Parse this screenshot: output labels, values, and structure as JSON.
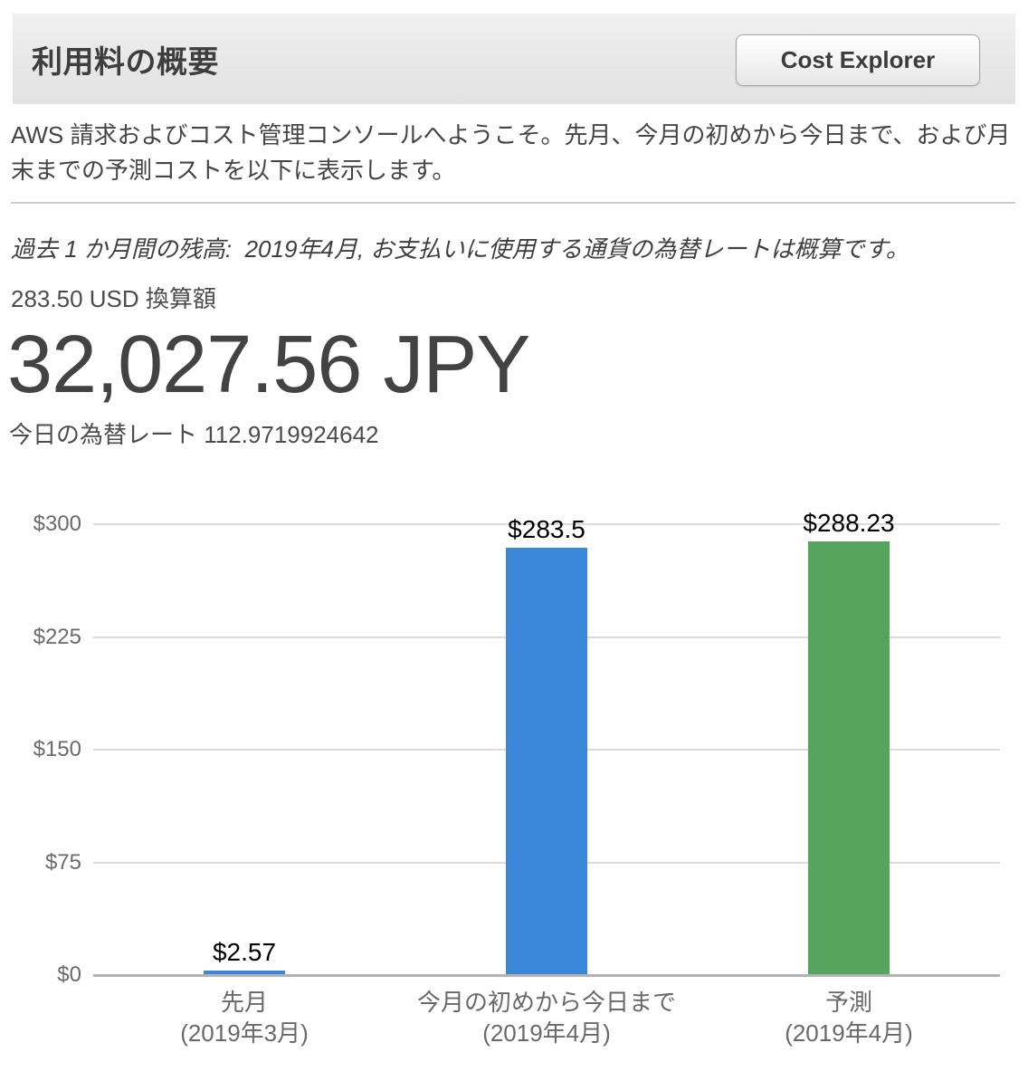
{
  "header": {
    "title": "利用料の概要",
    "cost_explorer_label": "Cost Explorer"
  },
  "intro": "AWS 請求およびコスト管理コンソールへようこそ。先月、今月の初めから今日まで、および月末までの予測コストを以下に表示します。",
  "balance_note": "過去 1 か月間の残高:  2019年4月, お支払いに使用する通貨の為替レートは概算です。",
  "converted_usd_line": "283.50 USD 換算額",
  "jpy_amount": "32,027.56 JPY",
  "exchange_rate_line": "今日の為替レート 112.9719924642",
  "chart_data": {
    "type": "bar",
    "categories": [
      [
        "先月",
        "(2019年3月)"
      ],
      [
        "今月の初めから今日まで",
        "(2019年4月)"
      ],
      [
        "予測",
        "(2019年4月)"
      ]
    ],
    "values": [
      2.57,
      283.5,
      288.23
    ],
    "bar_labels": [
      "$2.57",
      "$283.5",
      "$288.23"
    ],
    "bar_colors": [
      "#3a86d8",
      "#3a86d8",
      "#56a55e"
    ],
    "y_ticks": [
      {
        "value": 300,
        "label": "$300"
      },
      {
        "value": 225,
        "label": "$225"
      },
      {
        "value": 150,
        "label": "$150"
      },
      {
        "value": 75,
        "label": "$75"
      },
      {
        "value": 0,
        "label": "$0"
      }
    ],
    "ylim": [
      0,
      300
    ],
    "xlabel": "",
    "ylabel": "",
    "title": "",
    "legend": "none",
    "grid": "horizontal"
  },
  "colors": {
    "bar_blue": "#3a86d8",
    "bar_green": "#56a55e",
    "gridline": "#dbdbdb",
    "axisline": "#b2b2b2"
  }
}
